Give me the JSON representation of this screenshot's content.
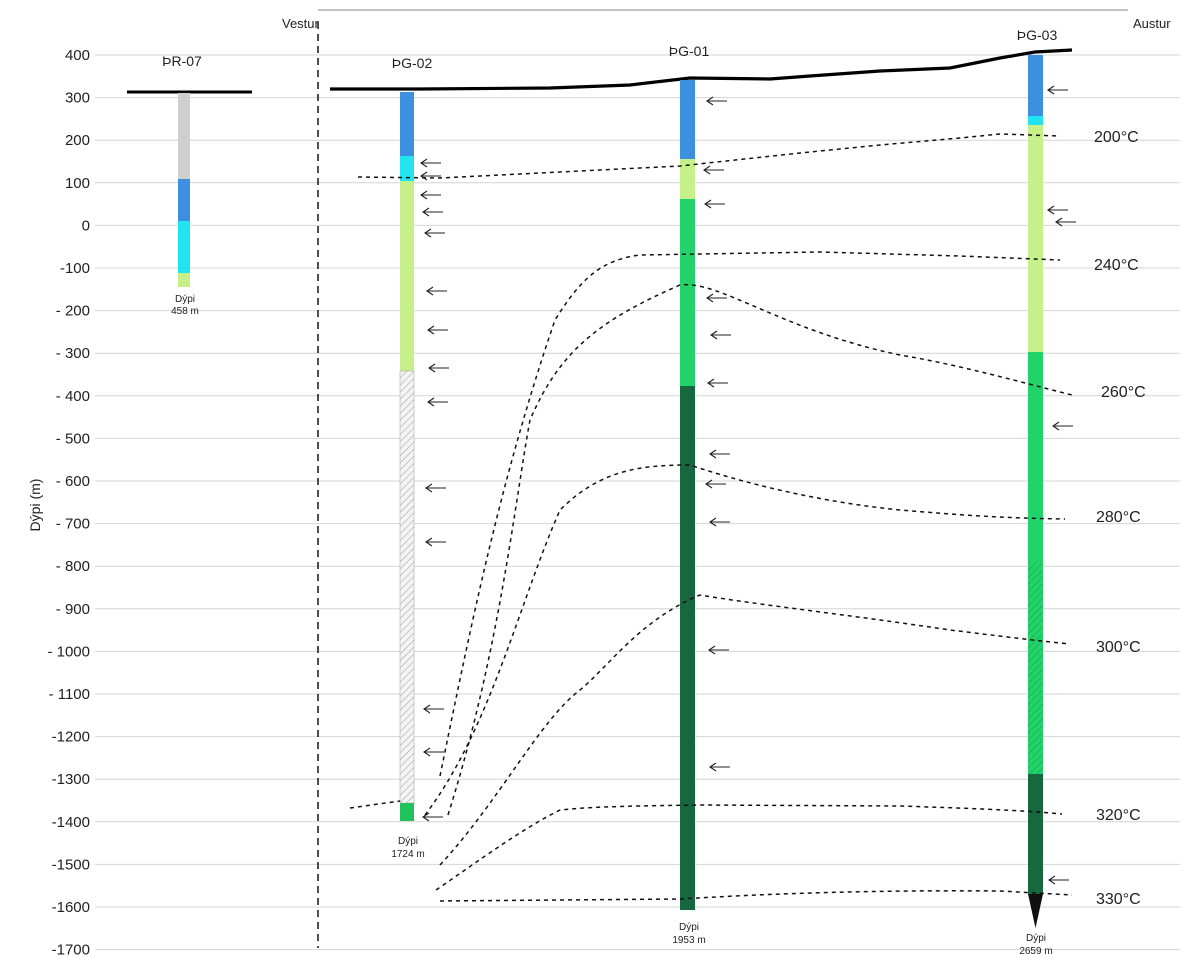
{
  "axis": {
    "title": "Dýpi (m)",
    "ticks": [
      "400",
      "300",
      "200",
      "100",
      "0",
      "-100",
      "- 200",
      "- 300",
      "- 400",
      "- 500",
      "- 600",
      "- 700",
      "- 800",
      "- 900",
      "- 1000",
      "- 1100",
      "-1200",
      "-1300",
      "-1400",
      "-1500",
      "-1600",
      "-1700"
    ]
  },
  "sides": {
    "west": "Vestur",
    "east": "Austur"
  },
  "wells": [
    {
      "name": "ÞR-07",
      "depth_label": "Dýpi",
      "depth_value": "458 m"
    },
    {
      "name": "ÞG-02",
      "depth_label": "Dýpi",
      "depth_value": "1724 m"
    },
    {
      "name": "ÞG-01",
      "depth_label": "Dýpi",
      "depth_value": "1953 m"
    },
    {
      "name": "ÞG-03",
      "depth_label": "Dýpi",
      "depth_value": "2659 m"
    }
  ],
  "isotherms": [
    "200°C",
    "240°C",
    "260°C",
    "280°C",
    "300°C",
    "320°C",
    "330°C"
  ],
  "colors": {
    "grid": "#d4d4d4",
    "surface": "#000000",
    "casing_grey": "#cfcfcf",
    "blue": "#3d8fe0",
    "cyan": "#22e4f0",
    "light_green": "#c5f08a",
    "green": "#22d36a",
    "dark_green": "#17683e",
    "hatch": "#bbbbbb"
  },
  "symbols": {
    "feed_zone": "arrow-left-icon"
  }
}
